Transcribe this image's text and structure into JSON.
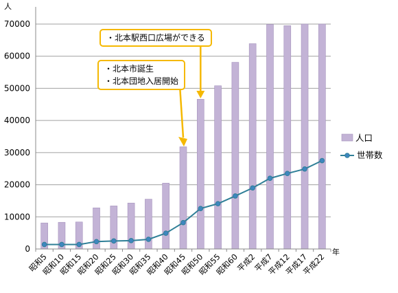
{
  "chart_data": {
    "type": "bar+line",
    "y_unit": "人",
    "x_unit": "年",
    "ylim": [
      0,
      70000
    ],
    "yticks": [
      0,
      10000,
      20000,
      30000,
      40000,
      50000,
      60000,
      70000
    ],
    "grid": true,
    "legend_position": "right",
    "categories": [
      "昭和5",
      "昭和10",
      "昭和15",
      "昭和20",
      "昭和25",
      "昭和30",
      "昭和35",
      "昭和40",
      "昭和45",
      "昭和50",
      "昭和55",
      "昭和60",
      "平成2",
      "平成7",
      "平成12",
      "平成17",
      "平成22"
    ],
    "series": [
      {
        "name": "人口",
        "type": "bar",
        "color": "#c3b3d6",
        "values": [
          8100,
          8300,
          8400,
          12800,
          13400,
          14300,
          15500,
          20500,
          31800,
          46600,
          50800,
          58100,
          63900,
          69900,
          69500,
          70100,
          70100
        ]
      },
      {
        "name": "世帯数",
        "type": "line",
        "color": "#2f7f97",
        "values": [
          1400,
          1400,
          1400,
          2300,
          2500,
          2600,
          3000,
          4900,
          8200,
          12600,
          14100,
          16500,
          19000,
          22000,
          23500,
          24900,
          27500
        ]
      }
    ],
    "annotations": [
      {
        "lines": [
          "・北本駅西口広場ができる"
        ],
        "points_to": "昭和50"
      },
      {
        "lines": [
          "・北本市誕生",
          "・北本団地入居開始"
        ],
        "points_to": "昭和45"
      }
    ]
  }
}
